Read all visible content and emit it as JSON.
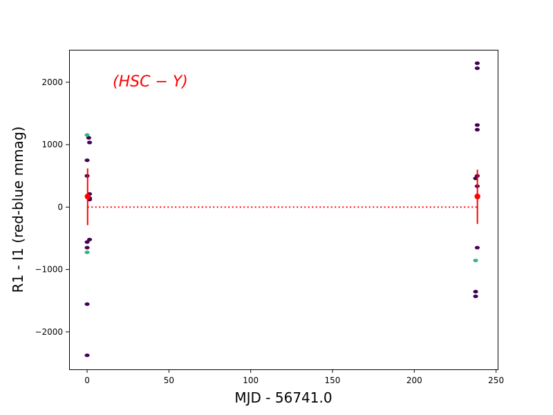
{
  "chart_data": {
    "type": "scatter",
    "xlabel": "MJD - 56741.0",
    "ylabel": "R1 - I1 (red-blue mmag)",
    "annotation": "(HSC − Y)",
    "xlim": [
      -11,
      251
    ],
    "ylim": [
      -2600,
      2520
    ],
    "xticks": [
      0,
      50,
      100,
      150,
      200,
      250
    ],
    "yticks": [
      -2000,
      -1000,
      0,
      1000,
      2000
    ],
    "grid": false,
    "colors": {
      "purple": "#440154",
      "teal": "#35b779",
      "red": "#ff0000"
    },
    "series": [
      {
        "color": "purple",
        "points": [
          {
            "x": 0.0,
            "y": 750
          },
          {
            "x": 0.0,
            "y": 500
          },
          {
            "x": 0.0,
            "y": -560
          },
          {
            "x": 0.0,
            "y": -650
          },
          {
            "x": 0.0,
            "y": -1555
          },
          {
            "x": 0.0,
            "y": -2375
          },
          {
            "x": 1.0,
            "y": 1110
          },
          {
            "x": 1.5,
            "y": 1035
          },
          {
            "x": 1.5,
            "y": 210
          },
          {
            "x": 1.5,
            "y": 145
          },
          {
            "x": 1.5,
            "y": 120
          },
          {
            "x": 1.5,
            "y": -520
          },
          {
            "x": 237.5,
            "y": 460
          },
          {
            "x": 237.5,
            "y": -1355
          },
          {
            "x": 237.5,
            "y": -1430
          },
          {
            "x": 238.5,
            "y": 2305
          },
          {
            "x": 238.5,
            "y": 2225
          },
          {
            "x": 238.5,
            "y": 1315
          },
          {
            "x": 238.5,
            "y": 1240
          },
          {
            "x": 238.5,
            "y": 500
          },
          {
            "x": 238.5,
            "y": 335
          },
          {
            "x": 238.5,
            "y": -650
          }
        ]
      },
      {
        "color": "teal",
        "points": [
          {
            "x": 0.0,
            "y": 1155
          },
          {
            "x": 0.0,
            "y": -725
          },
          {
            "x": 237.5,
            "y": -855
          }
        ]
      }
    ],
    "means": [
      {
        "x": 0.3,
        "y": 170,
        "err_low": -290,
        "err_high": 620
      },
      {
        "x": 238.6,
        "y": 170,
        "err_low": -270,
        "err_high": 600
      }
    ],
    "reference_line": {
      "y": 0,
      "x_from": 0.3,
      "x_to": 238.6,
      "style": "dotted"
    }
  }
}
